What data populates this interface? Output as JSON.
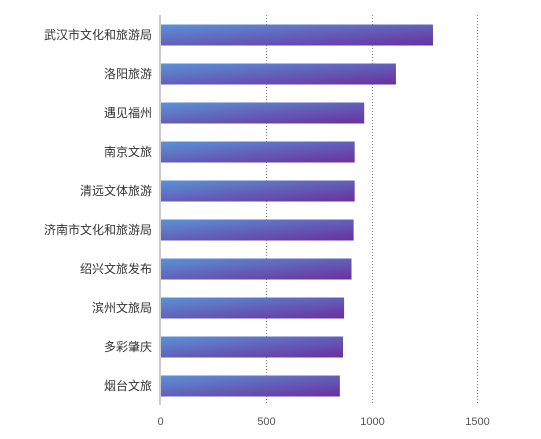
{
  "chart_data": {
    "type": "bar",
    "orientation": "horizontal",
    "categories": [
      "武汉市文化和旅游局",
      "洛阳旅游",
      "遇见福州",
      "南京文旅",
      "清远文体旅游",
      "济南市文化和旅游局",
      "绍兴文旅发布",
      "滨州文旅局",
      "多彩肇庆",
      "烟台文旅"
    ],
    "values": [
      1290,
      1115,
      965,
      920,
      920,
      915,
      905,
      870,
      865,
      850
    ],
    "xlim": [
      0,
      1600
    ],
    "xticks": [
      0,
      500,
      1000,
      1500
    ],
    "xtick_labels": [
      "0",
      "500",
      "1000",
      "1500"
    ],
    "grid": "vertical dotted",
    "legend": "none",
    "colors": {
      "bar_start": "#5b92d6",
      "bar_end": "#6a2f9e",
      "grid": "#888888",
      "axis": "#999999"
    }
  }
}
